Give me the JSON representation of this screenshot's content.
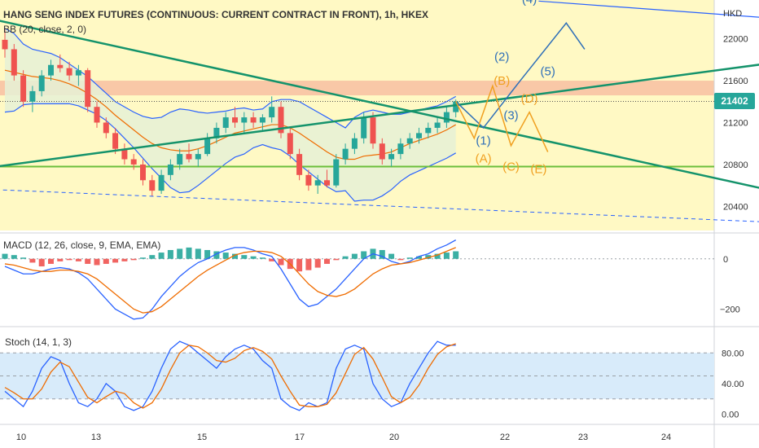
{
  "title": "HANG SENG INDEX FUTURES (CONTINUOUS: CURRENT CONTRACT IN FRONT), 1h, HKEX",
  "currency": "HKD",
  "colors": {
    "bull": "#26a69a",
    "bear": "#ef5350",
    "bb_fill": "#fff9c4",
    "resistance_band": "#f8bba0",
    "blue": "#2962ff",
    "orange": "#ef6c00",
    "trend": "#14936b",
    "support": "#6bbf3a",
    "wave_blue": "#2e6fb8",
    "wave_orange": "#f0a020",
    "stoch_band": "#d8ebfa"
  },
  "price_badge": "21402",
  "indicators": {
    "bb": "BB (20, close, 2, 0)",
    "macd": "MACD (12, 26, close, 9, EMA, EMA)",
    "stoch": "Stoch (14, 1, 3)"
  },
  "chart_data": [
    {
      "type": "candlestick",
      "pane": "price",
      "x_ticks": [
        "10",
        "13",
        "15",
        "17",
        "20",
        "22",
        "23",
        "24"
      ],
      "y_ticks": [
        22000,
        21600,
        21200,
        20800,
        20400
      ],
      "ylim": [
        20170,
        22370
      ],
      "last_price": 21402,
      "ohlc": [
        [
          21990,
          22100,
          21820,
          21900
        ],
        [
          21900,
          21950,
          21600,
          21650
        ],
        [
          21650,
          21700,
          21350,
          21400
        ],
        [
          21400,
          21550,
          21300,
          21500
        ],
        [
          21500,
          21700,
          21450,
          21650
        ],
        [
          21650,
          21800,
          21600,
          21750
        ],
        [
          21750,
          21850,
          21680,
          21720
        ],
        [
          21720,
          21780,
          21600,
          21650
        ],
        [
          21650,
          21750,
          21550,
          21700
        ],
        [
          21700,
          21720,
          21300,
          21350
        ],
        [
          21350,
          21400,
          21150,
          21200
        ],
        [
          21200,
          21250,
          21050,
          21100
        ],
        [
          21100,
          21150,
          20900,
          20950
        ],
        [
          20950,
          21000,
          20800,
          20850
        ],
        [
          20850,
          20900,
          20750,
          20800
        ],
        [
          20800,
          20850,
          20600,
          20650
        ],
        [
          20650,
          20700,
          20500,
          20550
        ],
        [
          20550,
          20750,
          20520,
          20700
        ],
        [
          20700,
          20850,
          20650,
          20800
        ],
        [
          20800,
          20950,
          20750,
          20900
        ],
        [
          20900,
          21000,
          20820,
          20850
        ],
        [
          20850,
          20950,
          20780,
          20900
        ],
        [
          20900,
          21100,
          20880,
          21050
        ],
        [
          21050,
          21200,
          21000,
          21150
        ],
        [
          21150,
          21300,
          21100,
          21250
        ],
        [
          21250,
          21350,
          21150,
          21200
        ],
        [
          21200,
          21300,
          21100,
          21250
        ],
        [
          21250,
          21300,
          21150,
          21200
        ],
        [
          21200,
          21280,
          21120,
          21250
        ],
        [
          21250,
          21450,
          21200,
          21350
        ],
        [
          21350,
          21400,
          21050,
          21100
        ],
        [
          21100,
          21150,
          20850,
          20900
        ],
        [
          20900,
          20950,
          20650,
          20700
        ],
        [
          20700,
          20750,
          20550,
          20600
        ],
        [
          20600,
          20700,
          20520,
          20650
        ],
        [
          20650,
          20750,
          20580,
          20600
        ],
        [
          20600,
          20900,
          20580,
          20850
        ],
        [
          20850,
          21000,
          20800,
          20950
        ],
        [
          20950,
          21100,
          20900,
          21050
        ],
        [
          21050,
          21300,
          21000,
          21250
        ],
        [
          21250,
          21300,
          20950,
          21000
        ],
        [
          21000,
          21050,
          20800,
          20850
        ],
        [
          20850,
          20950,
          20780,
          20900
        ],
        [
          20900,
          21050,
          20850,
          21000
        ],
        [
          21000,
          21100,
          20950,
          21050
        ],
        [
          21050,
          21150,
          21000,
          21100
        ],
        [
          21100,
          21200,
          21050,
          21150
        ],
        [
          21150,
          21250,
          21100,
          21200
        ],
        [
          21200,
          21350,
          21150,
          21300
        ],
        [
          21300,
          21420,
          21250,
          21402
        ]
      ],
      "bb_upper": [
        22100,
        22050,
        21950,
        21900,
        21880,
        21860,
        21820,
        21760,
        21700,
        21640,
        21560,
        21480,
        21400,
        21350,
        21300,
        21260,
        21240,
        21250,
        21300,
        21330,
        21320,
        21300,
        21290,
        21300,
        21310,
        21330,
        21340,
        21320,
        21330,
        21400,
        21420,
        21420,
        21400,
        21350,
        21300,
        21250,
        21200,
        21150,
        21250,
        21300,
        21320,
        21300,
        21280,
        21280,
        21300,
        21320,
        21340,
        21360,
        21400,
        21450
      ],
      "bb_middle": [
        21700,
        21680,
        21660,
        21640,
        21630,
        21620,
        21600,
        21570,
        21530,
        21480,
        21420,
        21350,
        21270,
        21200,
        21130,
        21060,
        21000,
        20960,
        20940,
        20930,
        20930,
        20950,
        20980,
        21020,
        21060,
        21100,
        21120,
        21140,
        21160,
        21180,
        21180,
        21150,
        21100,
        21040,
        20980,
        20920,
        20870,
        20850,
        20850,
        20880,
        20890,
        20900,
        20920,
        20960,
        21000,
        21030,
        21060,
        21090,
        21130,
        21180
      ],
      "bb_lower": [
        21300,
        21310,
        21370,
        21380,
        21380,
        21380,
        21380,
        21380,
        21360,
        21320,
        21280,
        21220,
        21140,
        21050,
        20960,
        20860,
        20760,
        20670,
        20580,
        20530,
        20540,
        20600,
        20670,
        20740,
        20810,
        20870,
        20900,
        20960,
        20990,
        20960,
        20940,
        20880,
        20800,
        20730,
        20660,
        20590,
        20540,
        20550,
        20450,
        20460,
        20460,
        20500,
        20560,
        20640,
        20700,
        20740,
        20780,
        20820,
        20860,
        20910
      ],
      "resistance_zone": [
        21460,
        21600
      ],
      "support_level": 20780,
      "dotted_last_level": 21402,
      "trendlines": [
        {
          "from": [
            -1,
            22180
          ],
          "to": [
            86,
            20500
          ]
        },
        {
          "from": [
            -1,
            20780
          ],
          "to": [
            86,
            21800
          ]
        },
        {
          "from": [
            -1,
            20560
          ],
          "to": [
            86,
            20240
          ]
        },
        {
          "from": [
            58,
            22360
          ],
          "to": [
            86,
            22180
          ]
        }
      ],
      "wave_paths": [
        {
          "color": "wave_blue",
          "points": [
            [
              49,
              21402
            ],
            [
              52,
              21150
            ],
            [
              56,
              21600
            ],
            [
              61,
              22150
            ],
            [
              63,
              21900
            ]
          ]
        },
        {
          "color": "wave_orange",
          "points": [
            [
              49,
              21402
            ],
            [
              51,
              21050
            ],
            [
              53,
              21550
            ],
            [
              55,
              20980
            ],
            [
              57,
              21300
            ],
            [
              59,
              20920
            ]
          ]
        }
      ],
      "wave_labels": [
        {
          "text": "(4)",
          "x": 57,
          "y": 22340,
          "color": "wave_blue"
        },
        {
          "text": "(2)",
          "x": 54,
          "y": 21790,
          "color": "wave_blue"
        },
        {
          "text": "(5)",
          "x": 59,
          "y": 21650,
          "color": "wave_blue"
        },
        {
          "text": "(B)",
          "x": 54,
          "y": 21560,
          "color": "wave_orange"
        },
        {
          "text": "(D)",
          "x": 57,
          "y": 21390,
          "color": "wave_orange"
        },
        {
          "text": "(3)",
          "x": 55,
          "y": 21230,
          "color": "wave_blue"
        },
        {
          "text": "(1)",
          "x": 52,
          "y": 20990,
          "color": "wave_blue"
        },
        {
          "text": "(A)",
          "x": 52,
          "y": 20820,
          "color": "wave_orange"
        },
        {
          "text": "(C)",
          "x": 55,
          "y": 20740,
          "color": "wave_orange"
        },
        {
          "text": "(E)",
          "x": 58,
          "y": 20720,
          "color": "wave_orange"
        }
      ]
    },
    {
      "type": "histogram_lines",
      "pane": "macd",
      "y_ticks": [
        0,
        -200
      ],
      "ylim": [
        -260,
        90
      ],
      "hist": [
        20,
        15,
        5,
        -15,
        -30,
        -20,
        -10,
        -5,
        -10,
        -20,
        -25,
        -20,
        -15,
        -10,
        -5,
        5,
        15,
        25,
        35,
        40,
        45,
        40,
        35,
        30,
        25,
        20,
        15,
        10,
        5,
        -10,
        -25,
        -40,
        -50,
        -45,
        -35,
        -20,
        -5,
        10,
        20,
        30,
        40,
        35,
        20,
        -5,
        5,
        10,
        15,
        20,
        25,
        30
      ],
      "macd_line": [
        -30,
        -45,
        -60,
        -60,
        -50,
        -40,
        -35,
        -40,
        -55,
        -80,
        -120,
        -160,
        -200,
        -220,
        -240,
        -235,
        -200,
        -150,
        -110,
        -70,
        -40,
        -15,
        0,
        20,
        35,
        45,
        45,
        35,
        20,
        10,
        -40,
        -100,
        -160,
        -190,
        -180,
        -150,
        -120,
        -80,
        -40,
        0,
        20,
        10,
        -10,
        -20,
        -10,
        10,
        20,
        40,
        55,
        75
      ],
      "signal_line": [
        -20,
        -25,
        -35,
        -45,
        -50,
        -50,
        -45,
        -45,
        -50,
        -60,
        -80,
        -110,
        -140,
        -170,
        -200,
        -215,
        -210,
        -190,
        -160,
        -130,
        -100,
        -70,
        -45,
        -25,
        -5,
        15,
        25,
        30,
        30,
        25,
        10,
        -20,
        -60,
        -100,
        -130,
        -145,
        -150,
        -140,
        -120,
        -90,
        -60,
        -40,
        -25,
        -20,
        -15,
        -5,
        5,
        15,
        30,
        45
      ]
    },
    {
      "type": "line",
      "pane": "stoch",
      "y_ticks": [
        80.0,
        40.0,
        0.0
      ],
      "ylim": [
        -10,
        110
      ],
      "band": [
        20,
        80
      ],
      "k_line": [
        30,
        20,
        10,
        30,
        60,
        75,
        70,
        40,
        15,
        10,
        20,
        40,
        30,
        10,
        5,
        10,
        30,
        60,
        85,
        95,
        90,
        80,
        70,
        60,
        75,
        85,
        90,
        85,
        70,
        60,
        20,
        10,
        5,
        15,
        10,
        15,
        60,
        85,
        90,
        85,
        40,
        20,
        10,
        15,
        40,
        60,
        80,
        95,
        90,
        90
      ],
      "d_line": [
        35,
        28,
        20,
        20,
        33,
        55,
        68,
        62,
        42,
        22,
        15,
        23,
        30,
        27,
        15,
        8,
        15,
        33,
        58,
        80,
        90,
        88,
        80,
        70,
        68,
        73,
        83,
        87,
        82,
        72,
        50,
        30,
        12,
        10,
        10,
        13,
        28,
        53,
        78,
        87,
        72,
        48,
        23,
        15,
        22,
        38,
        60,
        78,
        88,
        92
      ]
    }
  ]
}
